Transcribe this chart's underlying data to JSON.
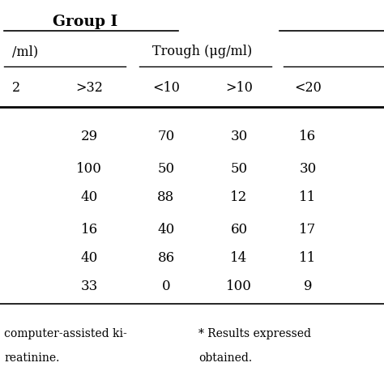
{
  "title": "Group I",
  "col1_header": "/ml)",
  "col2_header": ">32",
  "trough_label": "Trough (μg/ml)",
  "col3_header": "<10",
  "col4_header": ">10",
  "col5_header": "<20",
  "col1_stub": "2",
  "rows": [
    [
      "",
      "29",
      "70",
      "30",
      "16"
    ],
    [
      "",
      "100",
      "50",
      "50",
      "30"
    ],
    [
      "",
      "40",
      "88",
      "12",
      "11"
    ],
    [
      "",
      "16",
      "40",
      "60",
      "17"
    ],
    [
      "",
      "40",
      "86",
      "14",
      "11"
    ],
    [
      "",
      "33",
      "0",
      "100",
      "9"
    ]
  ],
  "footnote_left1": "computer-assisted ki-",
  "footnote_left2": "reatinine.",
  "footnote_right1": "* Results expressed",
  "footnote_right2": "obtained.",
  "background_color": "#ffffff",
  "text_color": "#000000",
  "font_size": 11.5,
  "title_font_size": 13.5
}
